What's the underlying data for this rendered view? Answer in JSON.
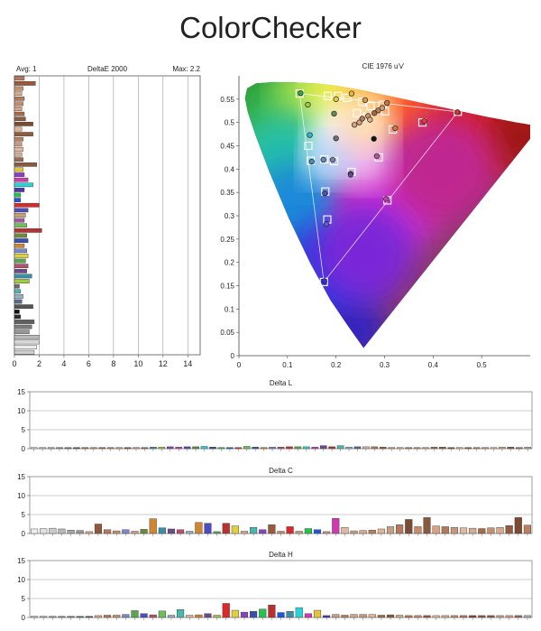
{
  "page": {
    "title": "ColorChecker"
  },
  "chart_data": [
    {
      "type": "bar",
      "orientation": "horizontal",
      "title": "DeltaE 2000",
      "avg_label": "Avg: 1",
      "max_label": "Max: 2.2",
      "xlim": [
        0,
        15
      ],
      "xticks": [
        "0",
        "2",
        "4",
        "6",
        "8",
        "10",
        "12",
        "14"
      ],
      "bars": [
        {
          "v": 0.8,
          "c": "#b7785d"
        },
        {
          "v": 1.7,
          "c": "#9a5a3a"
        },
        {
          "v": 0.7,
          "c": "#c6906f"
        },
        {
          "v": 0.6,
          "c": "#d9a98a"
        },
        {
          "v": 0.8,
          "c": "#b17a58"
        },
        {
          "v": 0.7,
          "c": "#c58d69"
        },
        {
          "v": 0.6,
          "c": "#d7a382"
        },
        {
          "v": 0.8,
          "c": "#a36c4c"
        },
        {
          "v": 0.9,
          "c": "#8e5a3d"
        },
        {
          "v": 1.5,
          "c": "#7d4b31"
        },
        {
          "v": 0.6,
          "c": "#e1b596"
        },
        {
          "v": 1.5,
          "c": "#915c3f"
        },
        {
          "v": 0.7,
          "c": "#b98160"
        },
        {
          "v": 0.6,
          "c": "#c9987a"
        },
        {
          "v": 0.7,
          "c": "#e0b9a0"
        },
        {
          "v": 0.6,
          "c": "#d3ad92"
        },
        {
          "v": 0.7,
          "c": "#9a6b52"
        },
        {
          "v": 1.8,
          "c": "#8a5a40"
        },
        {
          "v": 0.7,
          "c": "#e6c23b"
        },
        {
          "v": 0.8,
          "c": "#8840c0"
        },
        {
          "v": 1.1,
          "c": "#d03ab0"
        },
        {
          "v": 1.5,
          "c": "#27d3d6"
        },
        {
          "v": 0.8,
          "c": "#4a3aa8"
        },
        {
          "v": 0.5,
          "c": "#23c450"
        },
        {
          "v": 0.5,
          "c": "#1e57d6"
        },
        {
          "v": 2.0,
          "c": "#d82a2a"
        },
        {
          "v": 1.1,
          "c": "#4e4cc0"
        },
        {
          "v": 0.9,
          "c": "#c7a070"
        },
        {
          "v": 0.8,
          "c": "#9c5ca0"
        },
        {
          "v": 1.0,
          "c": "#6fbe5a"
        },
        {
          "v": 2.2,
          "c": "#b83030"
        },
        {
          "v": 1.0,
          "c": "#6c8c3c"
        },
        {
          "v": 1.1,
          "c": "#3a4eb0"
        },
        {
          "v": 0.8,
          "c": "#d28530"
        },
        {
          "v": 1.0,
          "c": "#7a88c8"
        },
        {
          "v": 1.1,
          "c": "#e0d040"
        },
        {
          "v": 0.9,
          "c": "#5aa650"
        },
        {
          "v": 1.1,
          "c": "#b84e6a"
        },
        {
          "v": 1.0,
          "c": "#6a4c8a"
        },
        {
          "v": 1.4,
          "c": "#3b8ea8"
        },
        {
          "v": 1.2,
          "c": "#a2c844"
        },
        {
          "v": 0.4,
          "c": "#6a6a6a"
        },
        {
          "v": 0.5,
          "c": "#4bb6ac"
        },
        {
          "v": 0.7,
          "c": "#9ab0c0"
        },
        {
          "v": 0.6,
          "c": "#5a6a8a"
        },
        {
          "v": 1.5,
          "c": "#555555"
        },
        {
          "v": 0.4,
          "c": "#111111"
        },
        {
          "v": 0.5,
          "c": "#2a2a2a"
        },
        {
          "v": 1.6,
          "c": "#606060"
        },
        {
          "v": 1.4,
          "c": "#7a7a7a"
        },
        {
          "v": 1.2,
          "c": "#969696"
        },
        {
          "v": 2.0,
          "c": "#b8b8b8"
        },
        {
          "v": 2.0,
          "c": "#d6d6d6"
        },
        {
          "v": 1.8,
          "c": "#ececec"
        },
        {
          "v": 1.6,
          "c": "#cfcfcf"
        }
      ]
    },
    {
      "type": "scatter",
      "title": "CIE 1976 u'v'",
      "xlim": [
        0,
        0.6
      ],
      "ylim": [
        0,
        0.6
      ],
      "xticks": [
        "0",
        "0.1",
        "0.2",
        "0.3",
        "0.4",
        "0.5"
      ],
      "yticks": [
        "0",
        "0.05",
        "0.1",
        "0.15",
        "0.2",
        "0.25",
        "0.3",
        "0.35",
        "0.4",
        "0.45",
        "0.5",
        "0.55"
      ],
      "primaries": {
        "red": [
          0.451,
          0.523
        ],
        "green": [
          0.125,
          0.562
        ],
        "blue": [
          0.175,
          0.158
        ],
        "white": [
          0.198,
          0.468
        ]
      },
      "targets": [
        {
          "u": 0.125,
          "v": 0.562,
          "c": "#2fa84a"
        },
        {
          "u": 0.451,
          "v": 0.523,
          "c": "#e03030"
        },
        {
          "u": 0.175,
          "v": 0.158,
          "c": "#3030d0"
        },
        {
          "u": 0.182,
          "v": 0.292,
          "c": "#5b5bd6"
        },
        {
          "u": 0.306,
          "v": 0.333,
          "c": "#c042b0"
        },
        {
          "u": 0.178,
          "v": 0.352,
          "c": "#5050b8"
        },
        {
          "u": 0.378,
          "v": 0.5,
          "c": "#e83a3a"
        },
        {
          "u": 0.317,
          "v": 0.485,
          "c": "#d07a3a"
        },
        {
          "u": 0.288,
          "v": 0.425,
          "c": "#b05a9a"
        },
        {
          "u": 0.232,
          "v": 0.394,
          "c": "#7a5aa8"
        },
        {
          "u": 0.143,
          "v": 0.45,
          "c": "#30b8c8"
        },
        {
          "u": 0.148,
          "v": 0.418,
          "c": "#4090c0"
        },
        {
          "u": 0.176,
          "v": 0.421,
          "c": "#6a8ab8"
        },
        {
          "u": 0.196,
          "v": 0.417,
          "c": "#8080a8"
        },
        {
          "u": 0.183,
          "v": 0.557,
          "c": "#b8d040"
        },
        {
          "u": 0.204,
          "v": 0.557,
          "c": "#e0d040"
        },
        {
          "u": 0.223,
          "v": 0.553,
          "c": "#e8b840"
        },
        {
          "u": 0.254,
          "v": 0.544,
          "c": "#e09a3a"
        },
        {
          "u": 0.296,
          "v": 0.538,
          "c": "#d07030"
        },
        {
          "u": 0.271,
          "v": 0.535,
          "c": "#c87a50"
        },
        {
          "u": 0.243,
          "v": 0.52,
          "c": "#c89070"
        },
        {
          "u": 0.263,
          "v": 0.511,
          "c": "#b87a5a"
        },
        {
          "u": 0.301,
          "v": 0.524,
          "c": "#a06848"
        }
      ],
      "measured": [
        {
          "u": 0.127,
          "v": 0.563,
          "c": "#2fa84a"
        },
        {
          "u": 0.45,
          "v": 0.522,
          "c": "#e03030"
        },
        {
          "u": 0.176,
          "v": 0.16,
          "c": "#3030d0"
        },
        {
          "u": 0.18,
          "v": 0.282,
          "c": "#5b5bd6"
        },
        {
          "u": 0.303,
          "v": 0.336,
          "c": "#c042b0"
        },
        {
          "u": 0.177,
          "v": 0.348,
          "c": "#5050b8"
        },
        {
          "u": 0.382,
          "v": 0.503,
          "c": "#e83a3a"
        },
        {
          "u": 0.322,
          "v": 0.488,
          "c": "#d07a3a"
        },
        {
          "u": 0.284,
          "v": 0.428,
          "c": "#b05a9a"
        },
        {
          "u": 0.23,
          "v": 0.39,
          "c": "#7a5aa8"
        },
        {
          "u": 0.146,
          "v": 0.473,
          "c": "#30b8c8"
        },
        {
          "u": 0.15,
          "v": 0.416,
          "c": "#4090c0"
        },
        {
          "u": 0.174,
          "v": 0.42,
          "c": "#6a8ab8"
        },
        {
          "u": 0.193,
          "v": 0.42,
          "c": "#8080a8"
        },
        {
          "u": 0.142,
          "v": 0.538,
          "c": "#a8c840"
        },
        {
          "u": 0.2,
          "v": 0.55,
          "c": "#e0d040"
        },
        {
          "u": 0.232,
          "v": 0.562,
          "c": "#e8b840"
        },
        {
          "u": 0.196,
          "v": 0.519,
          "c": "#6a8a5a"
        },
        {
          "u": 0.26,
          "v": 0.548,
          "c": "#e09a3a"
        },
        {
          "u": 0.287,
          "v": 0.526,
          "c": "#c87a50"
        },
        {
          "u": 0.266,
          "v": 0.514,
          "c": "#c89070"
        },
        {
          "u": 0.254,
          "v": 0.508,
          "c": "#b87a5a"
        },
        {
          "u": 0.248,
          "v": 0.5,
          "c": "#d8a080"
        },
        {
          "u": 0.279,
          "v": 0.52,
          "c": "#a06848"
        },
        {
          "u": 0.295,
          "v": 0.531,
          "c": "#c8a080"
        },
        {
          "u": 0.27,
          "v": 0.506,
          "c": "#e0b090"
        },
        {
          "u": 0.238,
          "v": 0.495,
          "c": "#d0a888"
        },
        {
          "u": 0.2,
          "v": 0.466,
          "c": "#707070"
        },
        {
          "u": 0.23,
          "v": 0.388,
          "c": "#5a4a98"
        },
        {
          "u": 0.278,
          "v": 0.465,
          "c": "#111111"
        },
        {
          "u": 0.305,
          "v": 0.542,
          "c": "#c47a40"
        }
      ]
    },
    {
      "type": "bar",
      "title": "Delta L",
      "ylim": [
        0,
        15
      ],
      "yticks": [
        "0",
        "5",
        "10",
        "15"
      ],
      "values": [
        0.3,
        0.3,
        0.3,
        0.3,
        0.3,
        0.3,
        0.3,
        0.3,
        0.3,
        0.3,
        0.3,
        0.3,
        0.3,
        0.3,
        0.4,
        0.4,
        0.5,
        0.4,
        0.5,
        0.5,
        0.6,
        0.4,
        0.3,
        0.3,
        0.3,
        0.6,
        0.4,
        0.3,
        0.4,
        0.4,
        0.5,
        0.5,
        0.5,
        0.4,
        0.8,
        0.5,
        0.8,
        0.4,
        0.5,
        0.5,
        0.5,
        0.4,
        0.3,
        0.3,
        0.3,
        0.3,
        0.3,
        0.4,
        0.4,
        0.3,
        0.3,
        0.3,
        0.3,
        0.3,
        0.3,
        0.4,
        0.4,
        0.3,
        0.4
      ],
      "colors": [
        "#d8d8d8",
        "#bcbcbc",
        "#a4a4a4",
        "#8c8c8c",
        "#747474",
        "#5c5c5c",
        "#b07050",
        "#c09070",
        "#a06848",
        "#b88060",
        "#d0a080",
        "#8a5a40",
        "#c8a080",
        "#9a6b52",
        "#3b8ea8",
        "#a2c844",
        "#8840c0",
        "#d03ab0",
        "#4e4cc0",
        "#6c8c3c",
        "#27d3d6",
        "#4a3aa8",
        "#23c450",
        "#1e57d6",
        "#d82a2a",
        "#6fbe5a",
        "#3a4eb0",
        "#d28530",
        "#7a88c8",
        "#b84e6a",
        "#d82a2a",
        "#5aa650",
        "#27d3d6",
        "#d03ab0",
        "#6a4c8a",
        "#b83030",
        "#4bb6ac",
        "#9ab0c0",
        "#5a6a8a",
        "#d8b89a",
        "#b7785d",
        "#9a5a3a",
        "#c6906f",
        "#d9a98a",
        "#b17a58",
        "#c58d69",
        "#d7a382",
        "#a36c4c",
        "#8e5a3d",
        "#7d4b31",
        "#e1b596",
        "#915c3f",
        "#b98160",
        "#c9987a",
        "#e0b9a0",
        "#d3ad92",
        "#8a5a40",
        "#9a6b52",
        "#b0b0b0"
      ]
    },
    {
      "type": "bar",
      "title": "Delta C",
      "ylim": [
        0,
        15
      ],
      "yticks": [
        "0",
        "5",
        "10",
        "15"
      ],
      "values": [
        1.2,
        1.3,
        1.4,
        1.2,
        0.9,
        0.8,
        0.5,
        2.5,
        1.0,
        0.7,
        1.0,
        0.6,
        1.1,
        3.9,
        1.5,
        1.2,
        1.0,
        0.6,
        2.9,
        2.7,
        0.5,
        2.7,
        2.0,
        0.6,
        1.6,
        1.0,
        2.3,
        0.6,
        1.8,
        0.6,
        1.3,
        1.0,
        0.5,
        4.0,
        1.6,
        0.7,
        0.8,
        0.9,
        1.2,
        1.8,
        2.3,
        3.7,
        1.8,
        4.2,
        2.0,
        1.8,
        1.6,
        1.5,
        1.4,
        1.3,
        1.5,
        1.6,
        2.1,
        4.2,
        2.2
      ],
      "colors": [
        "#eeeeee",
        "#e0e0e0",
        "#cccccc",
        "#b8b8b8",
        "#a8a8a8",
        "#989898",
        "#d9a98a",
        "#8e5a3d",
        "#b7785d",
        "#c6906f",
        "#7a88c8",
        "#d0a080",
        "#6c8c3c",
        "#d28530",
        "#3b8ea8",
        "#6a4c8a",
        "#b84e6a",
        "#9ab0c0",
        "#d28530",
        "#4e4cc0",
        "#5aa650",
        "#b83030",
        "#e0d040",
        "#d9a98a",
        "#4bb6ac",
        "#8840c0",
        "#9a5a3a",
        "#c6906f",
        "#d82a2a",
        "#c8a080",
        "#23c450",
        "#1e57d6",
        "#c9987a",
        "#d03ab0",
        "#e0b9a0",
        "#c8a080",
        "#d9a98a",
        "#b98160",
        "#e1b596",
        "#c8a080",
        "#b7785d",
        "#7d4b31",
        "#c58d69",
        "#8a5a40",
        "#d7a382",
        "#b17a58",
        "#c9987a",
        "#e0b9a0",
        "#d3ad92",
        "#a36c4c",
        "#c6906f",
        "#d9a98a",
        "#915c3f",
        "#7d4b31",
        "#b98160"
      ]
    },
    {
      "type": "bar",
      "title": "Delta H",
      "ylim": [
        0,
        15
      ],
      "yticks": [
        "0",
        "5",
        "10",
        "15"
      ],
      "values": [
        0.3,
        0.3,
        0.3,
        0.3,
        0.3,
        0.3,
        0.3,
        0.5,
        0.6,
        0.6,
        0.8,
        1.8,
        1.0,
        0.7,
        1.7,
        0.6,
        2.1,
        0.6,
        0.7,
        1.0,
        0.6,
        3.7,
        1.9,
        1.4,
        1.6,
        2.2,
        3.3,
        1.3,
        1.6,
        2.6,
        1.0,
        1.9,
        0.5,
        0.8,
        0.6,
        0.8,
        0.8,
        0.8,
        0.6,
        0.7,
        0.6,
        0.5,
        0.5,
        0.5,
        0.5,
        0.5,
        0.5,
        0.5,
        0.5,
        0.5,
        0.5,
        0.5,
        0.5,
        0.5,
        0.5
      ],
      "colors": [
        "#bbbbbb",
        "#aaaaaa",
        "#999999",
        "#888888",
        "#777777",
        "#666666",
        "#555555",
        "#d9a98a",
        "#b7785d",
        "#c6906f",
        "#7a88c8",
        "#5aa650",
        "#4e4cc0",
        "#b84e6a",
        "#6fbe5a",
        "#9ab0c0",
        "#4bb6ac",
        "#e0b9a0",
        "#d28530",
        "#6a4c8a",
        "#a2c844",
        "#d82a2a",
        "#e0d040",
        "#8840c0",
        "#3a4eb0",
        "#23c450",
        "#b83030",
        "#1e57d6",
        "#3b8ea8",
        "#27d3d6",
        "#d03ab0",
        "#e6c23b",
        "#4a3aa8",
        "#c8a080",
        "#b98160",
        "#d7a382",
        "#c9987a",
        "#e1b596",
        "#a36c4c",
        "#8e5a3d",
        "#d3ad92",
        "#b17a58",
        "#c58d69",
        "#9a5a3a",
        "#e0b9a0",
        "#d9a98a",
        "#c6906f",
        "#b7785d",
        "#7d4b31",
        "#915c3f",
        "#8a5a40",
        "#c8a080",
        "#d0a080",
        "#9a6b52",
        "#b0b0b0"
      ]
    }
  ]
}
